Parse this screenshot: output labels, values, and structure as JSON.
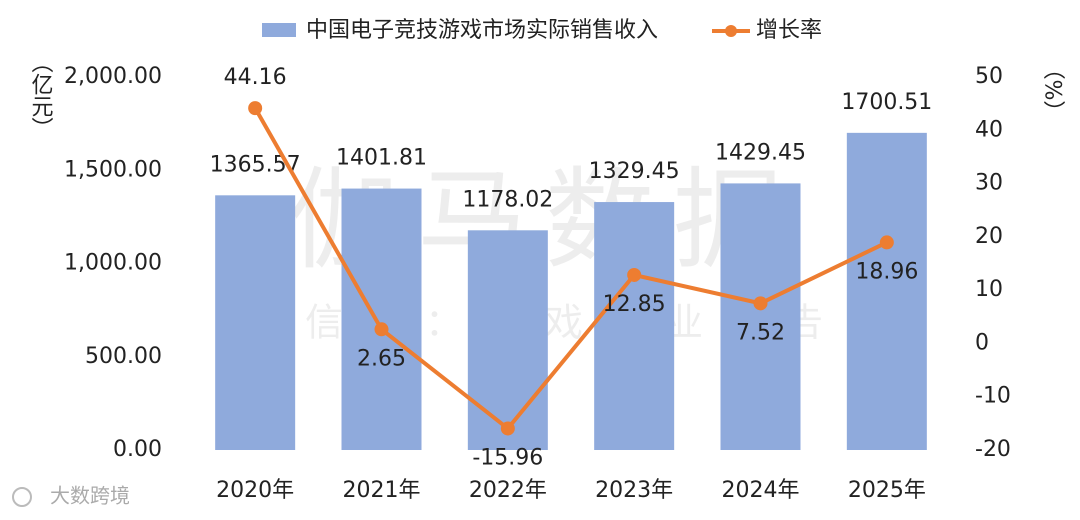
{
  "chart_data": {
    "type": "bar",
    "categories": [
      "2020年",
      "2021年",
      "2022年",
      "2023年",
      "2024年",
      "2025年"
    ],
    "series": [
      {
        "name": "中国电子竞技游戏市场实际销售收入",
        "type": "bar",
        "color": "#8faadc",
        "values": [
          1365.57,
          1401.81,
          1178.02,
          1329.45,
          1429.45,
          1700.51
        ]
      },
      {
        "name": "增长率",
        "type": "line",
        "axis": "y2",
        "color": "#ed7d31",
        "values": [
          44.16,
          2.65,
          -15.96,
          12.85,
          7.52,
          18.96
        ]
      }
    ],
    "ylabel": "（亿元）",
    "y2label": "（%）",
    "ylim": [
      0,
      2000
    ],
    "yticks": [
      {
        "value": 0,
        "label": "0.00"
      },
      {
        "value": 500,
        "label": "500.00"
      },
      {
        "value": 1000,
        "label": "1,000.00"
      },
      {
        "value": 1500,
        "label": "1,500.00"
      },
      {
        "value": 2000,
        "label": "2,000.00"
      }
    ],
    "y2lim": [
      -20,
      50
    ],
    "y2ticks": [
      -20,
      -10,
      0,
      10,
      20,
      30,
      40,
      50
    ],
    "legend": "top",
    "watermarks": [
      "伽马数据",
      "微信号：游戏产业报告",
      "大数跨境"
    ]
  }
}
